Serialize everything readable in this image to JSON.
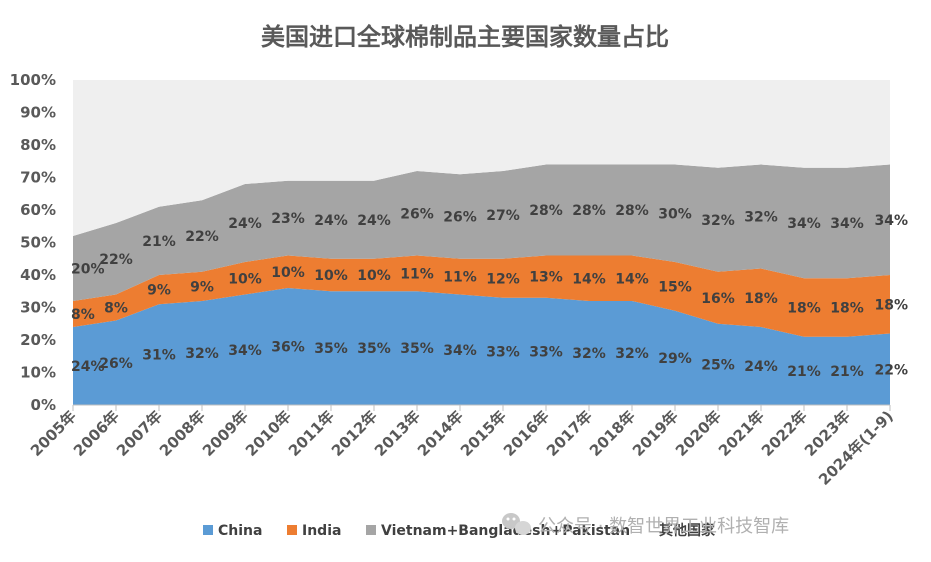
{
  "chart_data": {
    "type": "area",
    "stacked": true,
    "title": "美国进口全球棉制品主要国家数量占比",
    "categories": [
      "2005年",
      "2006年",
      "2007年",
      "2008年",
      "2009年",
      "2010年",
      "2011年",
      "2012年",
      "2013年",
      "2014年",
      "2015年",
      "2016年",
      "2017年",
      "2018年",
      "2019年",
      "2020年",
      "2021年",
      "2022年",
      "2023年",
      "2024年(1-9)"
    ],
    "yticks": [
      "0%",
      "10%",
      "20%",
      "30%",
      "40%",
      "50%",
      "60%",
      "70%",
      "80%",
      "90%",
      "100%"
    ],
    "ylim": [
      0,
      100
    ],
    "series": [
      {
        "name": "China",
        "color": "#5B9BD5",
        "values": [
          24,
          26,
          31,
          32,
          34,
          36,
          35,
          35,
          35,
          34,
          33,
          33,
          32,
          32,
          29,
          25,
          24,
          21,
          21,
          22
        ],
        "labels": [
          "24%",
          "26%",
          "31%",
          "32%",
          "34%",
          "36%",
          "35%",
          "35%",
          "35%",
          "34%",
          "33%",
          "33%",
          "32%",
          "32%",
          "29%",
          "25%",
          "24%",
          "21%",
          "21%",
          "22%"
        ]
      },
      {
        "name": "India",
        "color": "#ED7D31",
        "values": [
          8,
          8,
          9,
          9,
          10,
          10,
          10,
          10,
          11,
          11,
          12,
          13,
          14,
          14,
          15,
          16,
          18,
          18,
          18,
          18
        ],
        "labels": [
          "8%",
          "8%",
          "9%",
          "9%",
          "10%",
          "10%",
          "10%",
          "10%",
          "11%",
          "11%",
          "12%",
          "13%",
          "14%",
          "14%",
          "15%",
          "16%",
          "18%",
          "18%",
          "18%",
          "18%"
        ]
      },
      {
        "name": "Vietnam+Bangladesh+Pakistan",
        "color": "#A5A5A5",
        "values": [
          20,
          22,
          21,
          22,
          24,
          23,
          24,
          24,
          26,
          26,
          27,
          28,
          28,
          28,
          30,
          32,
          32,
          34,
          34,
          34
        ],
        "labels": [
          "20%",
          "22%",
          "21%",
          "22%",
          "24%",
          "23%",
          "24%",
          "24%",
          "26%",
          "26%",
          "27%",
          "28%",
          "28%",
          "28%",
          "30%",
          "32%",
          "32%",
          "34%",
          "34%",
          "34%"
        ]
      },
      {
        "name": "其他国家",
        "color": "#EFEFEF",
        "values": [
          48,
          44,
          39,
          37,
          32,
          31,
          31,
          31,
          28,
          29,
          28,
          26,
          26,
          26,
          26,
          27,
          26,
          27,
          27,
          26
        ],
        "labels": []
      }
    ],
    "grid": false,
    "legend_position": "bottom"
  },
  "watermark": {
    "text": "公众号 · 数智世界工业科技智库",
    "icon": "wechat-icon"
  }
}
